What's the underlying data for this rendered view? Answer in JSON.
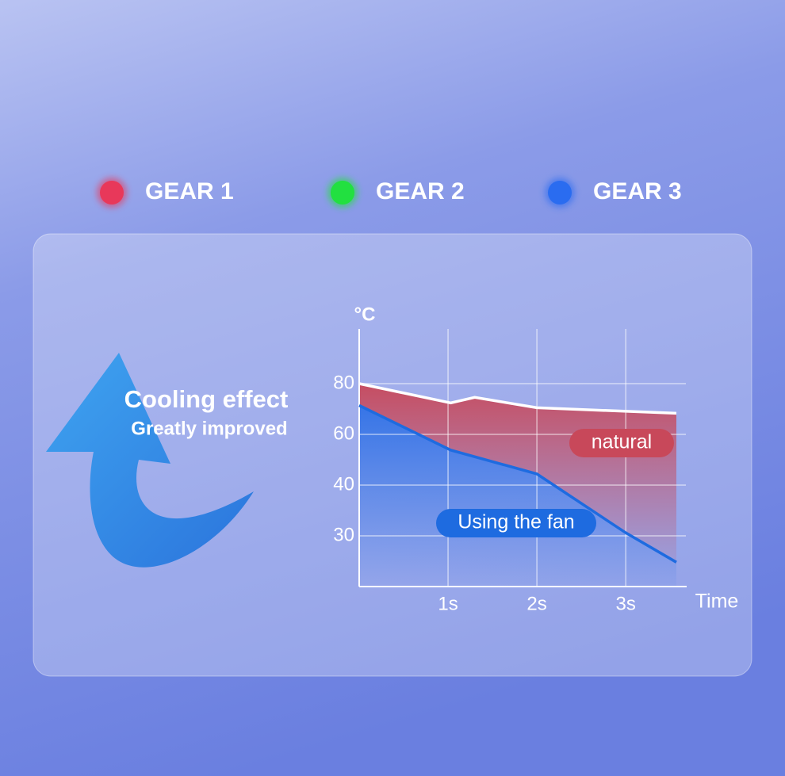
{
  "legend": [
    {
      "label": "GEAR 1",
      "color": "#e8385a"
    },
    {
      "label": "GEAR 2",
      "color": "#22e040"
    },
    {
      "label": "GEAR 3",
      "color": "#2a6cf0"
    }
  ],
  "headline": {
    "title": "Cooling effect",
    "subtitle": "Greatly improved"
  },
  "chart_data": {
    "type": "line",
    "y_label": "°C",
    "x_label": "Time",
    "xlim": [
      0,
      3.65
    ],
    "ylim": [
      20,
      100
    ],
    "xticks": [
      {
        "value": 1,
        "label": "1s"
      },
      {
        "value": 2,
        "label": "2s"
      },
      {
        "value": 3,
        "label": "3s"
      }
    ],
    "yticks": [
      30,
      40,
      60,
      80
    ],
    "grid": true,
    "series": [
      {
        "name": "natural",
        "color": "#c8485a",
        "x": [
          0,
          1.03,
          1.3,
          2.0,
          3.57
        ],
        "values": [
          80,
          72.4,
          74.6,
          70.5,
          68.3
        ]
      },
      {
        "name": "Using the fan",
        "color": "#1e6be0",
        "x": [
          0,
          1.03,
          2.0,
          3.0,
          3.57
        ],
        "values": [
          71.4,
          53.8,
          44.4,
          30.6,
          24.8
        ]
      }
    ]
  }
}
